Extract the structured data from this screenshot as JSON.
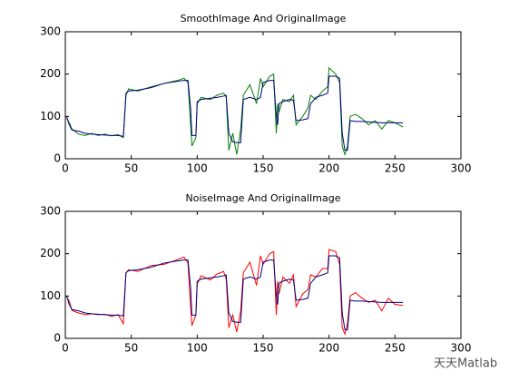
{
  "chart_data": [
    {
      "type": "line",
      "title": "SmoothImage And OriginalImage",
      "x": [
        1,
        3,
        5,
        10,
        15,
        20,
        25,
        30,
        35,
        40,
        44,
        46,
        48,
        55,
        65,
        75,
        85,
        90,
        93,
        95,
        96,
        99,
        100,
        103,
        110,
        115,
        120,
        122,
        124,
        127,
        130,
        133,
        135,
        140,
        145,
        148,
        150,
        155,
        158,
        160,
        161,
        162,
        165,
        170,
        173,
        175,
        180,
        184,
        186,
        190,
        195,
        199,
        200,
        205,
        208,
        210,
        212,
        214,
        216,
        220,
        225,
        230,
        235,
        240,
        245,
        250,
        256
      ],
      "series": [
        {
          "color": "#008000",
          "values": [
            95,
            85,
            70,
            58,
            55,
            60,
            55,
            58,
            54,
            57,
            50,
            150,
            165,
            160,
            170,
            178,
            185,
            190,
            180,
            80,
            30,
            50,
            130,
            145,
            140,
            150,
            155,
            145,
            20,
            60,
            10,
            70,
            150,
            175,
            130,
            190,
            170,
            195,
            200,
            60,
            130,
            110,
            140,
            135,
            150,
            80,
            100,
            120,
            150,
            140,
            160,
            170,
            215,
            200,
            180,
            30,
            10,
            30,
            100,
            105,
            95,
            80,
            90,
            70,
            90,
            85,
            75
          ]
        },
        {
          "color": "#000080",
          "values": [
            100,
            80,
            68,
            65,
            60,
            58,
            57,
            56,
            55,
            55,
            53,
            155,
            160,
            162,
            168,
            178,
            183,
            185,
            185,
            120,
            55,
            55,
            135,
            140,
            143,
            145,
            148,
            150,
            60,
            40,
            38,
            38,
            140,
            145,
            140,
            145,
            180,
            185,
            185,
            100,
            80,
            130,
            135,
            140,
            138,
            90,
            92,
            95,
            130,
            145,
            150,
            155,
            195,
            195,
            190,
            60,
            20,
            20,
            90,
            88,
            88,
            87,
            86,
            85,
            85,
            85,
            85
          ]
        }
      ],
      "xlim": [
        0,
        300
      ],
      "xticks": [
        0,
        50,
        100,
        150,
        200,
        250,
        300
      ],
      "ylim": [
        0,
        300
      ],
      "yticks": [
        0,
        100,
        200,
        300
      ]
    },
    {
      "type": "line",
      "title": "NoiseImage And OriginalImage",
      "x": [
        1,
        3,
        5,
        10,
        15,
        20,
        25,
        30,
        35,
        40,
        44,
        46,
        48,
        55,
        65,
        75,
        85,
        90,
        93,
        95,
        96,
        99,
        100,
        103,
        110,
        115,
        120,
        122,
        124,
        127,
        130,
        133,
        135,
        140,
        145,
        148,
        150,
        155,
        158,
        160,
        161,
        162,
        165,
        170,
        173,
        175,
        180,
        184,
        186,
        190,
        195,
        199,
        200,
        205,
        208,
        210,
        212,
        214,
        216,
        220,
        225,
        230,
        235,
        240,
        245,
        250,
        256
      ],
      "series": [
        {
          "color": "#ff0000",
          "values": [
            98,
            88,
            66,
            60,
            56,
            58,
            56,
            57,
            52,
            56,
            35,
            155,
            162,
            158,
            172,
            175,
            186,
            192,
            178,
            75,
            30,
            55,
            128,
            148,
            138,
            152,
            158,
            140,
            25,
            55,
            15,
            65,
            155,
            180,
            125,
            195,
            175,
            200,
            205,
            55,
            135,
            105,
            145,
            130,
            150,
            75,
            105,
            115,
            150,
            145,
            165,
            165,
            210,
            205,
            175,
            25,
            10,
            35,
            100,
            108,
            95,
            85,
            90,
            65,
            95,
            80,
            78
          ]
        },
        {
          "color": "#000080",
          "values": [
            100,
            80,
            68,
            65,
            60,
            58,
            57,
            56,
            55,
            55,
            53,
            155,
            160,
            162,
            168,
            178,
            183,
            185,
            185,
            120,
            55,
            55,
            135,
            140,
            143,
            145,
            148,
            150,
            60,
            40,
            38,
            38,
            140,
            145,
            140,
            145,
            180,
            185,
            185,
            100,
            80,
            130,
            135,
            140,
            138,
            90,
            92,
            95,
            130,
            145,
            150,
            155,
            195,
            195,
            190,
            60,
            20,
            20,
            90,
            88,
            88,
            87,
            86,
            85,
            85,
            85,
            85
          ]
        }
      ],
      "xlim": [
        0,
        300
      ],
      "xticks": [
        0,
        50,
        100,
        150,
        200,
        250,
        300
      ],
      "ylim": [
        0,
        300
      ],
      "yticks": [
        0,
        100,
        200,
        300
      ]
    }
  ],
  "watermark": "天天Matlab"
}
